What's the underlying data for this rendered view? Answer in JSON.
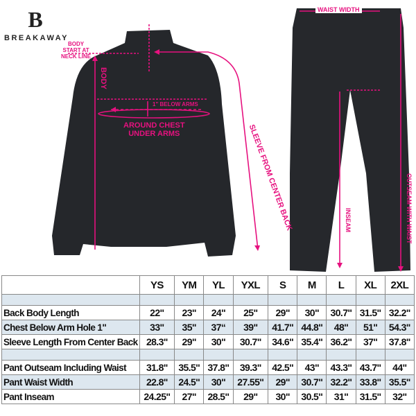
{
  "brand": {
    "logo_text": "BREAKAWAY"
  },
  "accent_color": "#e6117f",
  "annotations": {
    "body_start": [
      "BODY",
      "START AT",
      "NECK LINE"
    ],
    "body": "BODY",
    "below_arms": "1\" BELOW ARMS",
    "around_chest": [
      "AROUND CHEST",
      "UNDER ARMS"
    ],
    "sleeve": "SLEEVE FROM CENTER BACK",
    "waist_width": "WAIST WIDTH",
    "inseam": "INSEAM",
    "outseam": "OUTSEAM WITH WAIST"
  },
  "size_table": {
    "sizes": [
      "YS",
      "YM",
      "YL",
      "YXL",
      "S",
      "M",
      "L",
      "XL",
      "2XL"
    ],
    "jacket_rows": [
      {
        "label": "Back Body Length",
        "values": [
          "22\"",
          "23\"",
          "24\"",
          "25\"",
          "29\"",
          "30\"",
          "30.7\"",
          "31.5\"",
          "32.2\""
        ]
      },
      {
        "label": "Chest Below Arm Hole 1\"",
        "values": [
          "33\"",
          "35\"",
          "37“",
          "39\"",
          "41.7\"",
          "44.8\"",
          "48\"",
          "51\"",
          "54.3\""
        ]
      },
      {
        "label": "Sleeve Length From Center Back",
        "values": [
          "28.3\"",
          "29\"",
          "30\"",
          "30.7\"",
          "34.6\"",
          "35.4\"",
          "36.2\"",
          "37\"",
          "37.8\""
        ]
      }
    ],
    "pant_rows": [
      {
        "label": "Pant Outseam Including Waist",
        "values": [
          "31.8\"",
          "35.5\"",
          "37.8\"",
          "39.3\"",
          "42.5\"",
          "43\"",
          "43.3\"",
          "43.7\"",
          "44\""
        ]
      },
      {
        "label": "Pant Waist Width",
        "values": [
          "22.8\"",
          "24.5\"",
          "30\"",
          "27.55\"",
          "29\"",
          "30.7\"",
          "32.2\"",
          "33.8\"",
          "35.5\""
        ]
      },
      {
        "label": "Pant Inseam",
        "values": [
          "24.25\"",
          "27\"",
          "28.5\"",
          "29\"",
          "30\"",
          "30.5\"",
          "31\"",
          "31.5\"",
          "32\""
        ]
      }
    ]
  }
}
